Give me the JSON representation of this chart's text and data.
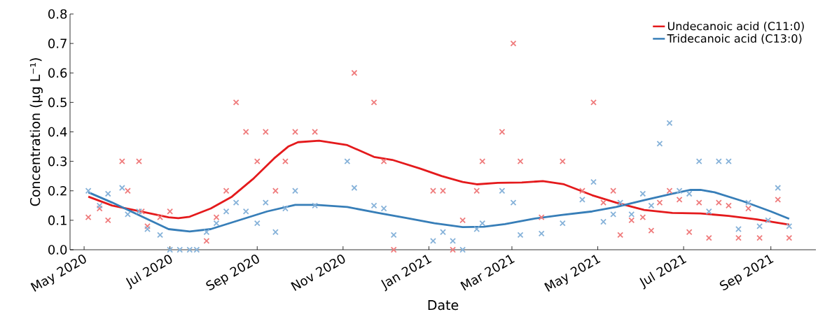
{
  "chart_data": {
    "type": "line",
    "xlabel": "Date",
    "ylabel": "Concentration (µg L⁻¹)",
    "xlim": [
      "2020-04-21",
      "2021-10-03"
    ],
    "ylim": [
      0,
      0.8
    ],
    "xticks": [
      {
        "value": "2020-05-01",
        "label": "May 2020"
      },
      {
        "value": "2020-07-01",
        "label": "Jul 2020"
      },
      {
        "value": "2020-09-01",
        "label": "Sep 2020"
      },
      {
        "value": "2020-11-01",
        "label": "Nov 2020"
      },
      {
        "value": "2021-01-01",
        "label": "Jan 2021"
      },
      {
        "value": "2021-03-01",
        "label": "Mar 2021"
      },
      {
        "value": "2021-05-01",
        "label": "May 2021"
      },
      {
        "value": "2021-07-01",
        "label": "Jul 2021"
      },
      {
        "value": "2021-09-01",
        "label": "Sep 2021"
      }
    ],
    "yticks": [
      {
        "value": 0,
        "label": "0.0"
      },
      {
        "value": 0.1,
        "label": "0.1"
      },
      {
        "value": 0.2,
        "label": "0.2"
      },
      {
        "value": 0.3,
        "label": "0.3"
      },
      {
        "value": 0.4,
        "label": "0.4"
      },
      {
        "value": 0.5,
        "label": "0.5"
      },
      {
        "value": 0.6,
        "label": "0.6"
      },
      {
        "value": 0.7,
        "label": "0.7"
      },
      {
        "value": 0.8,
        "label": "0.8"
      }
    ],
    "legend": "top right",
    "grid": false,
    "series": [
      {
        "type": "scatter",
        "marker": "cross",
        "color": "#ef7b7c",
        "x": [
          "2020-05-04",
          "2020-05-12",
          "2020-05-18",
          "2020-05-28",
          "2020-06-01",
          "2020-06-09",
          "2020-06-11",
          "2020-06-15",
          "2020-06-24",
          "2020-07-01",
          "2020-07-27",
          "2020-08-03",
          "2020-08-10",
          "2020-08-17",
          "2020-08-24",
          "2020-09-01",
          "2020-09-07",
          "2020-09-14",
          "2020-09-21",
          "2020-09-28",
          "2020-10-12",
          "2020-11-09",
          "2020-11-23",
          "2020-11-30",
          "2020-12-07",
          "2021-01-04",
          "2021-01-11",
          "2021-01-18",
          "2021-01-25",
          "2021-02-04",
          "2021-02-08",
          "2021-02-22",
          "2021-03-02",
          "2021-03-07",
          "2021-03-22",
          "2021-04-06",
          "2021-04-20",
          "2021-04-28",
          "2021-05-05",
          "2021-05-12",
          "2021-05-17",
          "2021-05-25",
          "2021-06-02",
          "2021-06-08",
          "2021-06-14",
          "2021-06-21",
          "2021-06-28",
          "2021-07-05",
          "2021-07-12",
          "2021-07-19",
          "2021-07-26",
          "2021-08-02",
          "2021-08-09",
          "2021-08-16",
          "2021-08-24",
          "2021-09-06",
          "2021-09-14"
        ],
        "values": [
          0.11,
          0.14,
          0.1,
          0.3,
          0.2,
          0.3,
          0.13,
          0.08,
          0.11,
          0.13,
          0.03,
          0.11,
          0.2,
          0.5,
          0.4,
          0.3,
          0.4,
          0.2,
          0.3,
          0.4,
          0.4,
          0.6,
          0.5,
          0.3,
          0.0,
          0.2,
          0.2,
          0.0,
          0.1,
          0.2,
          0.3,
          0.4,
          0.7,
          0.3,
          0.11,
          0.3,
          0.2,
          0.5,
          0.16,
          0.2,
          0.05,
          0.1,
          0.11,
          0.065,
          0.16,
          0.2,
          0.17,
          0.06,
          0.16,
          0.04,
          0.16,
          0.15,
          0.04,
          0.14,
          0.04,
          0.17,
          0.04
        ]
      },
      {
        "type": "scatter",
        "marker": "cross",
        "color": "#86b2d9",
        "x": [
          "2020-05-04",
          "2020-05-12",
          "2020-05-18",
          "2020-05-28",
          "2020-06-01",
          "2020-06-09",
          "2020-06-15",
          "2020-06-24",
          "2020-07-01",
          "2020-07-08",
          "2020-07-15",
          "2020-07-20",
          "2020-07-27",
          "2020-08-03",
          "2020-08-10",
          "2020-08-17",
          "2020-08-24",
          "2020-09-01",
          "2020-09-07",
          "2020-09-14",
          "2020-09-21",
          "2020-09-28",
          "2020-10-12",
          "2020-11-04",
          "2020-11-09",
          "2020-11-23",
          "2020-11-30",
          "2020-12-07",
          "2021-01-04",
          "2021-01-11",
          "2021-01-18",
          "2021-01-25",
          "2021-02-04",
          "2021-02-08",
          "2021-02-22",
          "2021-03-02",
          "2021-03-07",
          "2021-03-22",
          "2021-04-06",
          "2021-04-20",
          "2021-04-28",
          "2021-05-05",
          "2021-05-12",
          "2021-05-17",
          "2021-05-25",
          "2021-06-02",
          "2021-06-08",
          "2021-06-14",
          "2021-06-21",
          "2021-06-28",
          "2021-07-05",
          "2021-07-12",
          "2021-07-19",
          "2021-07-26",
          "2021-08-02",
          "2021-08-09",
          "2021-08-16",
          "2021-08-24",
          "2021-08-30",
          "2021-09-06",
          "2021-09-14"
        ],
        "values": [
          0.2,
          0.15,
          0.19,
          0.21,
          0.12,
          0.13,
          0.07,
          0.05,
          0.0,
          0.0,
          0.0,
          0.0,
          0.06,
          0.09,
          0.13,
          0.16,
          0.13,
          0.09,
          0.16,
          0.06,
          0.14,
          0.2,
          0.15,
          0.3,
          0.21,
          0.15,
          0.14,
          0.05,
          0.03,
          0.06,
          0.03,
          0.0,
          0.07,
          0.09,
          0.2,
          0.16,
          0.05,
          0.055,
          0.09,
          0.17,
          0.23,
          0.095,
          0.12,
          0.16,
          0.12,
          0.19,
          0.15,
          0.36,
          0.43,
          0.2,
          0.19,
          0.3,
          0.13,
          0.3,
          0.3,
          0.07,
          0.16,
          0.08,
          0.1,
          0.21,
          0.08
        ]
      },
      {
        "name": "Undecanoic acid (C11:0)",
        "color": "#e41a1c",
        "marker": "none",
        "line_style": "solid",
        "x": [
          "2020-05-04",
          "2020-05-21",
          "2020-06-10",
          "2020-06-30",
          "2020-07-07",
          "2020-07-15",
          "2020-07-30",
          "2020-08-14",
          "2020-08-29",
          "2020-09-13",
          "2020-09-23",
          "2020-09-30",
          "2020-10-15",
          "2020-11-04",
          "2020-11-23",
          "2020-12-06",
          "2020-12-26",
          "2021-01-10",
          "2021-01-25",
          "2021-02-04",
          "2021-02-19",
          "2021-03-08",
          "2021-03-23",
          "2021-04-07",
          "2021-04-27",
          "2021-05-14",
          "2021-06-03",
          "2021-06-23",
          "2021-07-13",
          "2021-08-02",
          "2021-08-22",
          "2021-09-14"
        ],
        "values": [
          0.18,
          0.15,
          0.13,
          0.11,
          0.107,
          0.112,
          0.14,
          0.18,
          0.24,
          0.31,
          0.35,
          0.365,
          0.37,
          0.355,
          0.315,
          0.305,
          0.275,
          0.25,
          0.23,
          0.222,
          0.227,
          0.228,
          0.233,
          0.222,
          0.185,
          0.16,
          0.135,
          0.125,
          0.123,
          0.115,
          0.103,
          0.085
        ]
      },
      {
        "name": "Tridecanoic acid (C13:0)",
        "color": "#377eb8",
        "marker": "none",
        "line_style": "solid",
        "x": [
          "2020-05-04",
          "2020-05-21",
          "2020-06-10",
          "2020-06-30",
          "2020-07-15",
          "2020-07-30",
          "2020-08-19",
          "2020-09-08",
          "2020-09-28",
          "2020-10-13",
          "2020-11-04",
          "2020-11-26",
          "2020-12-16",
          "2021-01-05",
          "2021-01-25",
          "2021-02-09",
          "2021-02-24",
          "2021-03-16",
          "2021-04-05",
          "2021-04-27",
          "2021-05-14",
          "2021-06-03",
          "2021-06-23",
          "2021-07-06",
          "2021-07-13",
          "2021-07-23",
          "2021-08-12",
          "2021-09-01",
          "2021-09-14"
        ],
        "values": [
          0.195,
          0.16,
          0.115,
          0.07,
          0.062,
          0.07,
          0.1,
          0.13,
          0.152,
          0.152,
          0.145,
          0.125,
          0.108,
          0.09,
          0.077,
          0.078,
          0.087,
          0.105,
          0.118,
          0.13,
          0.145,
          0.168,
          0.19,
          0.203,
          0.203,
          0.195,
          0.165,
          0.13,
          0.105
        ]
      }
    ]
  }
}
